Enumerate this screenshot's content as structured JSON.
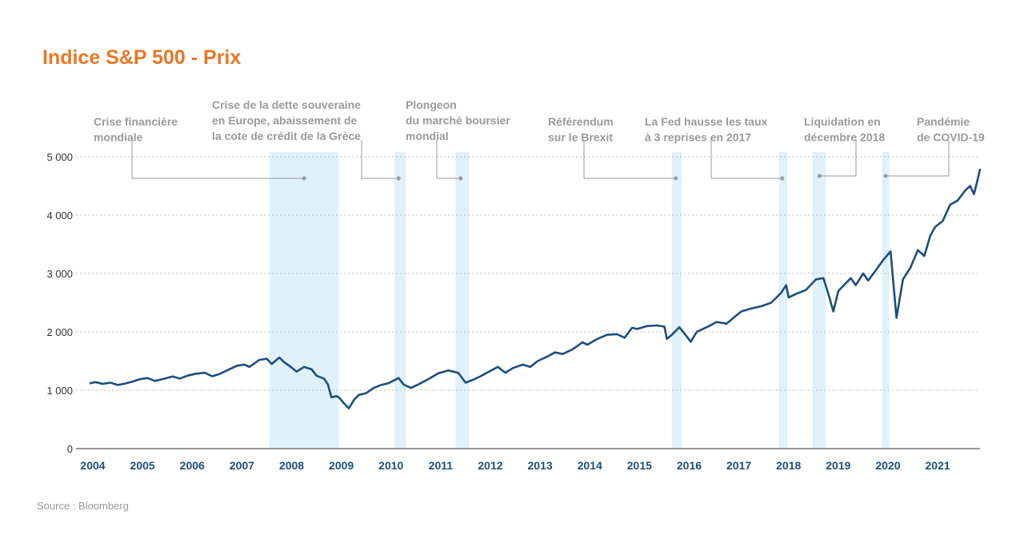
{
  "chart_data": {
    "type": "line",
    "title": "Indice S&P 500 - Prix",
    "source": "Source : Bloomberg",
    "xlabel": "",
    "ylabel": "",
    "x_range": [
      2004.0,
      2021.9
    ],
    "ylim": [
      0,
      5000
    ],
    "grid": "horizontal dotted",
    "y_ticks": [
      {
        "value": 0,
        "label": "0"
      },
      {
        "value": 1000,
        "label": "1 000"
      },
      {
        "value": 2000,
        "label": "2 000"
      },
      {
        "value": 3000,
        "label": "3 000"
      },
      {
        "value": 4000,
        "label": "4 000"
      },
      {
        "value": 5000,
        "label": "5 000"
      }
    ],
    "x_ticks": [
      {
        "value": 2004,
        "label": "2004"
      },
      {
        "value": 2005,
        "label": "2005"
      },
      {
        "value": 2006,
        "label": "2006"
      },
      {
        "value": 2007,
        "label": "2007"
      },
      {
        "value": 2008,
        "label": "2008"
      },
      {
        "value": 2009,
        "label": "2009"
      },
      {
        "value": 2010,
        "label": "2010"
      },
      {
        "value": 2011,
        "label": "2011"
      },
      {
        "value": 2012,
        "label": "2012"
      },
      {
        "value": 2013,
        "label": "2013"
      },
      {
        "value": 2014,
        "label": "2014"
      },
      {
        "value": 2015,
        "label": "2015"
      },
      {
        "value": 2016,
        "label": "2016"
      },
      {
        "value": 2017,
        "label": "2017"
      },
      {
        "value": 2018,
        "label": "2018"
      },
      {
        "value": 2019,
        "label": "2019"
      },
      {
        "value": 2020,
        "label": "2020"
      },
      {
        "value": 2021,
        "label": "2021"
      }
    ],
    "series": [
      {
        "color": "#1d4f7c",
        "points": [
          [
            2004.0,
            1120
          ],
          [
            2004.1,
            1140
          ],
          [
            2004.25,
            1110
          ],
          [
            2004.4,
            1130
          ],
          [
            2004.55,
            1090
          ],
          [
            2004.7,
            1115
          ],
          [
            2004.85,
            1150
          ],
          [
            2005.0,
            1190
          ],
          [
            2005.15,
            1210
          ],
          [
            2005.3,
            1160
          ],
          [
            2005.5,
            1200
          ],
          [
            2005.65,
            1235
          ],
          [
            2005.8,
            1200
          ],
          [
            2005.95,
            1250
          ],
          [
            2006.1,
            1280
          ],
          [
            2006.3,
            1300
          ],
          [
            2006.45,
            1240
          ],
          [
            2006.6,
            1280
          ],
          [
            2006.8,
            1360
          ],
          [
            2006.95,
            1420
          ],
          [
            2007.1,
            1440
          ],
          [
            2007.2,
            1400
          ],
          [
            2007.4,
            1520
          ],
          [
            2007.55,
            1540
          ],
          [
            2007.65,
            1450
          ],
          [
            2007.8,
            1560
          ],
          [
            2007.9,
            1480
          ],
          [
            2008.0,
            1420
          ],
          [
            2008.15,
            1320
          ],
          [
            2008.3,
            1400
          ],
          [
            2008.45,
            1360
          ],
          [
            2008.55,
            1250
          ],
          [
            2008.7,
            1200
          ],
          [
            2008.78,
            1100
          ],
          [
            2008.85,
            880
          ],
          [
            2008.95,
            900
          ],
          [
            2009.0,
            880
          ],
          [
            2009.1,
            780
          ],
          [
            2009.2,
            690
          ],
          [
            2009.3,
            830
          ],
          [
            2009.4,
            920
          ],
          [
            2009.55,
            950
          ],
          [
            2009.7,
            1040
          ],
          [
            2009.85,
            1090
          ],
          [
            2010.0,
            1120
          ],
          [
            2010.2,
            1210
          ],
          [
            2010.3,
            1100
          ],
          [
            2010.45,
            1040
          ],
          [
            2010.6,
            1100
          ],
          [
            2010.8,
            1190
          ],
          [
            2011.0,
            1290
          ],
          [
            2011.2,
            1340
          ],
          [
            2011.4,
            1300
          ],
          [
            2011.55,
            1130
          ],
          [
            2011.7,
            1180
          ],
          [
            2011.85,
            1240
          ],
          [
            2012.0,
            1310
          ],
          [
            2012.2,
            1400
          ],
          [
            2012.35,
            1300
          ],
          [
            2012.5,
            1380
          ],
          [
            2012.7,
            1440
          ],
          [
            2012.85,
            1400
          ],
          [
            2013.0,
            1500
          ],
          [
            2013.2,
            1580
          ],
          [
            2013.35,
            1650
          ],
          [
            2013.5,
            1620
          ],
          [
            2013.7,
            1700
          ],
          [
            2013.9,
            1820
          ],
          [
            2014.0,
            1780
          ],
          [
            2014.2,
            1880
          ],
          [
            2014.4,
            1950
          ],
          [
            2014.6,
            1960
          ],
          [
            2014.75,
            1900
          ],
          [
            2014.9,
            2070
          ],
          [
            2015.0,
            2050
          ],
          [
            2015.2,
            2100
          ],
          [
            2015.4,
            2110
          ],
          [
            2015.55,
            2090
          ],
          [
            2015.6,
            1880
          ],
          [
            2015.7,
            1950
          ],
          [
            2015.85,
            2080
          ],
          [
            2016.0,
            1920
          ],
          [
            2016.08,
            1830
          ],
          [
            2016.2,
            2000
          ],
          [
            2016.45,
            2100
          ],
          [
            2016.6,
            2170
          ],
          [
            2016.8,
            2140
          ],
          [
            2016.95,
            2250
          ],
          [
            2017.1,
            2350
          ],
          [
            2017.3,
            2400
          ],
          [
            2017.5,
            2440
          ],
          [
            2017.7,
            2500
          ],
          [
            2017.9,
            2670
          ],
          [
            2018.0,
            2800
          ],
          [
            2018.05,
            2590
          ],
          [
            2018.2,
            2650
          ],
          [
            2018.4,
            2720
          ],
          [
            2018.6,
            2900
          ],
          [
            2018.75,
            2920
          ],
          [
            2018.85,
            2650
          ],
          [
            2018.95,
            2350
          ],
          [
            2019.05,
            2700
          ],
          [
            2019.3,
            2920
          ],
          [
            2019.4,
            2800
          ],
          [
            2019.55,
            3000
          ],
          [
            2019.65,
            2880
          ],
          [
            2019.8,
            3050
          ],
          [
            2019.95,
            3230
          ],
          [
            2020.0,
            3280
          ],
          [
            2020.1,
            3380
          ],
          [
            2020.15,
            2900
          ],
          [
            2020.22,
            2240
          ],
          [
            2020.35,
            2900
          ],
          [
            2020.5,
            3100
          ],
          [
            2020.65,
            3400
          ],
          [
            2020.78,
            3300
          ],
          [
            2020.9,
            3650
          ],
          [
            2021.0,
            3800
          ],
          [
            2021.15,
            3900
          ],
          [
            2021.3,
            4180
          ],
          [
            2021.45,
            4250
          ],
          [
            2021.6,
            4420
          ],
          [
            2021.7,
            4500
          ],
          [
            2021.78,
            4360
          ],
          [
            2021.85,
            4600
          ],
          [
            2021.9,
            4780
          ]
        ]
      }
    ],
    "shaded_periods": [
      {
        "start": 2007.6,
        "end": 2009.0
      },
      {
        "start": 2010.12,
        "end": 2010.35
      },
      {
        "start": 2011.35,
        "end": 2011.62
      },
      {
        "start": 2015.7,
        "end": 2015.9
      },
      {
        "start": 2017.85,
        "end": 2018.02
      },
      {
        "start": 2018.53,
        "end": 2018.8
      },
      {
        "start": 2019.93,
        "end": 2020.07
      }
    ],
    "annotations": [
      {
        "lines": [
          "Crise financière",
          "mondiale"
        ],
        "point_x": 2008.3
      },
      {
        "lines": [
          "Crise de la dette souveraine",
          "en Europe, abaissement de",
          "la cote de crédit de la Grèce"
        ],
        "point_x": 2010.2
      },
      {
        "lines": [
          "Plongeon",
          "du marché boursier",
          "mondial"
        ],
        "point_x": 2011.45
      },
      {
        "lines": [
          "Référendum",
          "sur le Brexit"
        ],
        "point_x": 2015.78
      },
      {
        "lines": [
          "La Fed hausse les taux",
          "à 3 reprises en 2017"
        ],
        "point_x": 2017.92
      },
      {
        "lines": [
          "Liquidation en",
          "décembre 2018"
        ],
        "point_x": 2018.67
      },
      {
        "lines": [
          "Pandémie",
          "de COVID-19"
        ],
        "point_x": 2020.0
      }
    ]
  },
  "colors": {
    "title": "#e87722",
    "line": "#1d4f7c",
    "shade": "#dff1fb",
    "axis_labels": "#1d4f7c",
    "annotation": "#9a9a9a",
    "grid": "#bdbdbd"
  }
}
